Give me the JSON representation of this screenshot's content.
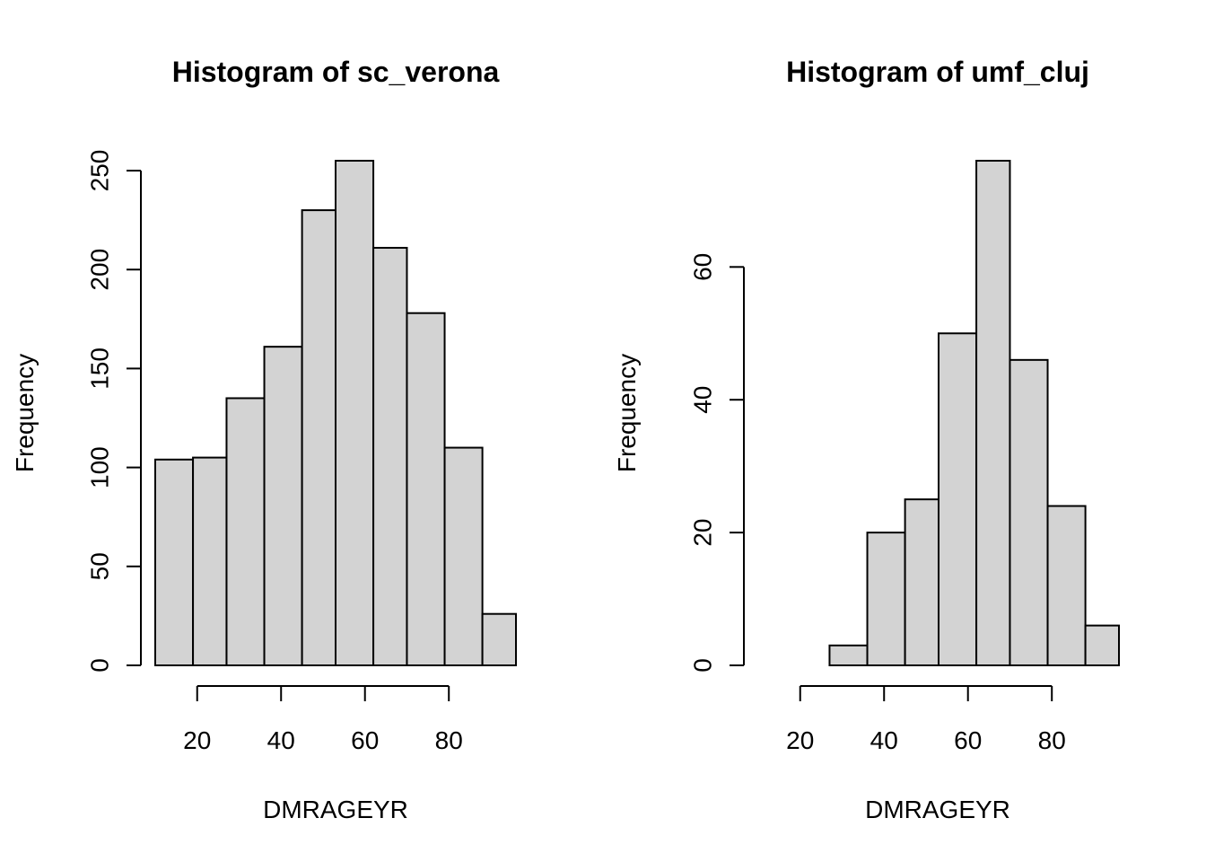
{
  "chart_data": [
    {
      "type": "bar",
      "title": "Histogram of sc_verona",
      "xlabel": "DMRAGEYR",
      "ylabel": "Frequency",
      "bins": [
        [
          10,
          19
        ],
        [
          19,
          27
        ],
        [
          27,
          36
        ],
        [
          36,
          45
        ],
        [
          45,
          53
        ],
        [
          53,
          62
        ],
        [
          62,
          70
        ],
        [
          70,
          79
        ],
        [
          79,
          88
        ],
        [
          88,
          96
        ]
      ],
      "values": [
        104,
        105,
        135,
        161,
        230,
        255,
        211,
        178,
        110,
        26
      ],
      "xlim": [
        10,
        96
      ],
      "ylim": [
        0,
        255
      ],
      "x_ticks": [
        20,
        40,
        60,
        80
      ],
      "x_tick_labels": [
        "20",
        "40",
        "60",
        "80"
      ],
      "y_ticks": [
        0,
        50,
        100,
        150,
        200,
        250
      ],
      "y_tick_labels": [
        "0",
        "50",
        "100",
        "150",
        "200",
        "250"
      ],
      "grid": false,
      "fill_color": "#d3d3d3"
    },
    {
      "type": "bar",
      "title": "Histogram of umf_cluj",
      "xlabel": "DMRAGEYR",
      "ylabel": "Frequency",
      "bins": [
        [
          10,
          19
        ],
        [
          19,
          27
        ],
        [
          27,
          36
        ],
        [
          36,
          45
        ],
        [
          45,
          53
        ],
        [
          53,
          62
        ],
        [
          62,
          70
        ],
        [
          70,
          79
        ],
        [
          79,
          88
        ],
        [
          88,
          96
        ]
      ],
      "values": [
        0,
        0,
        3,
        20,
        25,
        50,
        76,
        46,
        24,
        6
      ],
      "xlim": [
        10,
        96
      ],
      "ylim": [
        0,
        76
      ],
      "x_ticks": [
        20,
        40,
        60,
        80
      ],
      "x_tick_labels": [
        "20",
        "40",
        "60",
        "80"
      ],
      "y_ticks": [
        0,
        20,
        40,
        60
      ],
      "y_tick_labels": [
        "0",
        "20",
        "40",
        "60"
      ],
      "grid": false,
      "fill_color": "#d3d3d3"
    }
  ]
}
